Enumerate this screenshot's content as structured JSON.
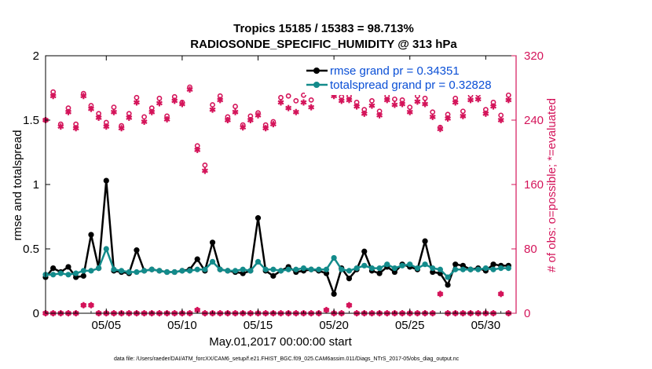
{
  "chart_data": {
    "type": "line",
    "title": "Tropics 15185 / 15383 = 98.713%",
    "subtitle": "RADIOSONDE_SPECIFIC_HUMIDITY @ 313 hPa",
    "xlabel": "May.01,2017 00:00:00 start",
    "ylabel": "rmse and totalspread",
    "ylabel_right": "# of obs: o=possible; *=evaluated",
    "footnote": "data file: /Users/raeder/DAI/ATM_forcXX/CAM6_setup/f.e21.FHIST_BGC.f09_025.CAM6assim.011/Diags_NTrS_2017-05/obs_diag_output.nc",
    "xlim": [
      1,
      32
    ],
    "ylim": [
      0,
      2
    ],
    "ylim_right": [
      0,
      320
    ],
    "xticks": [
      5,
      10,
      15,
      20,
      25,
      30
    ],
    "xtick_labels": [
      "05/05",
      "05/10",
      "05/15",
      "05/20",
      "05/25",
      "05/30"
    ],
    "yticks": [
      0,
      0.5,
      1,
      1.5,
      2
    ],
    "ytick_labels": [
      "0",
      "0.5",
      "1",
      "1.5",
      "2"
    ],
    "yticks_right": [
      0,
      80,
      160,
      240,
      320
    ],
    "ytick_labels_right": [
      "0",
      "80",
      "160",
      "240",
      "320"
    ],
    "colors": {
      "rmse": "#000000",
      "spread": "#138b8b",
      "obs": "#d4145a",
      "legend_text": "#0a4fd6"
    },
    "x": [
      1,
      1.5,
      2,
      2.5,
      3,
      3.5,
      4,
      4.5,
      5,
      5.5,
      6,
      6.5,
      7,
      7.5,
      8,
      8.5,
      9,
      9.5,
      10,
      10.5,
      11,
      11.5,
      12,
      12.5,
      13,
      13.5,
      14,
      14.5,
      15,
      15.5,
      16,
      16.5,
      17,
      17.5,
      18,
      18.5,
      19,
      19.5,
      20,
      20.5,
      21,
      21.5,
      22,
      22.5,
      23,
      23.5,
      24,
      24.5,
      25,
      25.5,
      26,
      26.5,
      27,
      27.5,
      28,
      28.5,
      29,
      29.5,
      30,
      30.5,
      31,
      31.5
    ],
    "series": [
      {
        "name": "rmse",
        "legend": "rmse grand pr = 0.34351",
        "values": [
          0.28,
          0.35,
          0.32,
          0.36,
          0.28,
          0.29,
          0.61,
          0.35,
          1.03,
          0.33,
          0.32,
          0.31,
          0.49,
          0.33,
          0.34,
          0.33,
          0.32,
          0.32,
          0.33,
          0.34,
          0.42,
          0.33,
          0.55,
          0.34,
          0.33,
          0.32,
          0.31,
          0.33,
          0.74,
          0.33,
          0.29,
          0.33,
          0.36,
          0.32,
          0.33,
          0.34,
          0.33,
          0.31,
          0.15,
          0.35,
          0.27,
          0.34,
          0.48,
          0.33,
          0.31,
          0.36,
          0.32,
          0.38,
          0.36,
          0.34,
          0.56,
          0.32,
          0.31,
          0.22,
          0.38,
          0.37,
          0.34,
          0.35,
          0.33,
          0.38,
          0.37,
          0.37
        ]
      },
      {
        "name": "totalspread",
        "legend": "totalspread grand pr = 0.32828",
        "values": [
          0.3,
          0.3,
          0.31,
          0.3,
          0.31,
          0.33,
          0.33,
          0.35,
          0.5,
          0.34,
          0.33,
          0.32,
          0.32,
          0.33,
          0.34,
          0.33,
          0.32,
          0.32,
          0.33,
          0.33,
          0.34,
          0.34,
          0.4,
          0.34,
          0.33,
          0.33,
          0.34,
          0.33,
          0.4,
          0.34,
          0.34,
          0.33,
          0.34,
          0.34,
          0.35,
          0.34,
          0.34,
          0.34,
          0.43,
          0.34,
          0.33,
          0.35,
          0.37,
          0.35,
          0.35,
          0.38,
          0.35,
          0.37,
          0.38,
          0.35,
          0.38,
          0.35,
          0.34,
          0.28,
          0.34,
          0.34,
          0.34,
          0.34,
          0.35,
          0.34,
          0.35,
          0.35
        ]
      }
    ],
    "obs_possible": [
      240,
      275,
      235,
      255,
      235,
      273,
      258,
      248,
      237,
      256,
      233,
      248,
      268,
      244,
      255,
      267,
      245,
      269,
      262,
      281,
      208,
      184,
      259,
      270,
      244,
      257,
      234,
      245,
      249,
      234,
      238,
      268,
      270,
      264,
      271,
      265,
      291,
      286,
      275,
      269,
      270,
      262,
      253,
      264,
      251,
      270,
      266,
      265,
      256,
      270,
      267,
      250,
      231,
      247,
      267,
      251,
      271,
      272,
      253,
      262,
      246,
      271
    ],
    "obs_evaluated": [
      240,
      270,
      232,
      250,
      230,
      270,
      254,
      243,
      232,
      250,
      230,
      243,
      262,
      238,
      250,
      261,
      241,
      264,
      260,
      278,
      203,
      177,
      253,
      265,
      240,
      250,
      231,
      240,
      246,
      230,
      235,
      262,
      255,
      250,
      262,
      256,
      281,
      278,
      270,
      264,
      265,
      257,
      248,
      258,
      246,
      265,
      259,
      260,
      250,
      263,
      260,
      244,
      229,
      242,
      262,
      245,
      265,
      266,
      248,
      257,
      240,
      265
    ],
    "obs_zero_markers": [
      0,
      0,
      0,
      0,
      0,
      10,
      10,
      0,
      0,
      0,
      0,
      0,
      0,
      0,
      0,
      0,
      0,
      0,
      0,
      0,
      4,
      0,
      0,
      0,
      0,
      0,
      0,
      0,
      0,
      0,
      0,
      0,
      0,
      0,
      0,
      0,
      0,
      4,
      0,
      0,
      10,
      0,
      0,
      0,
      0,
      0,
      0,
      0,
      0,
      0,
      0,
      0,
      24,
      0,
      0,
      0,
      0,
      0,
      0,
      0,
      24,
      0
    ]
  }
}
